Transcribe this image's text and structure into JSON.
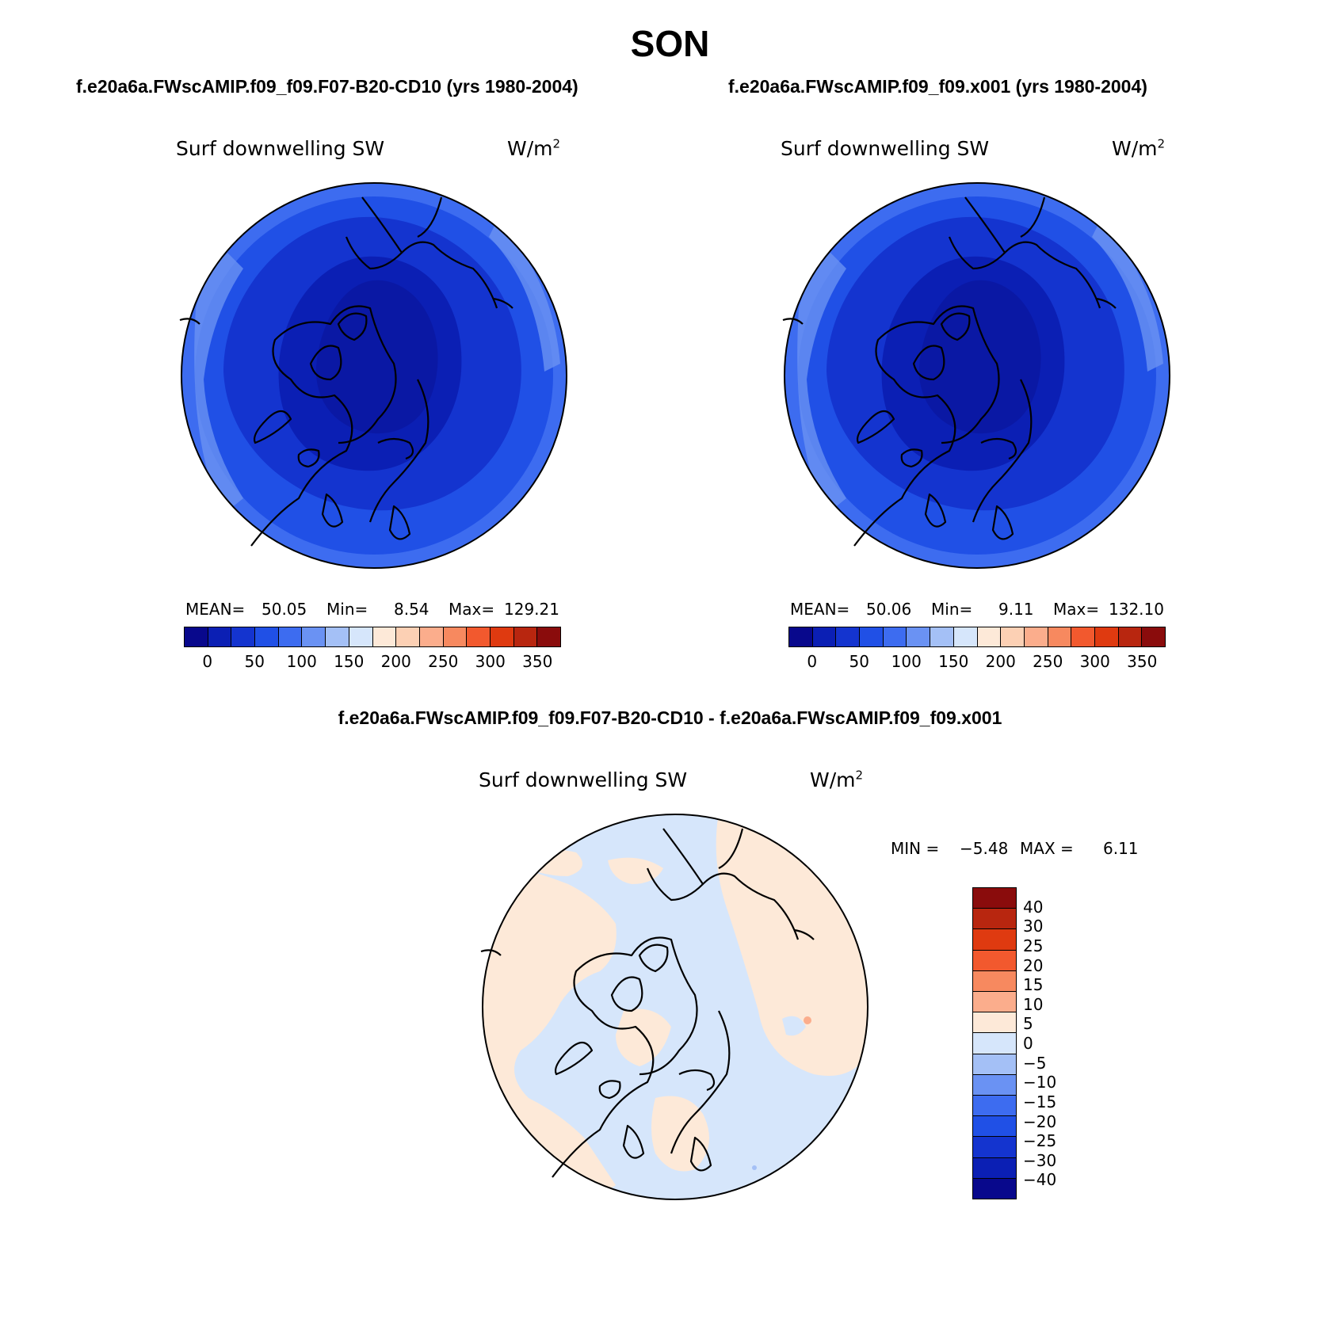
{
  "season": "SON",
  "panels": [
    {
      "case_title": "f.e20a6a.FWscAMIP.f09_f09.F07-B20-CD10 (yrs 1980-2004)",
      "variable": "Surf downwelling SW",
      "units_base": "W/m",
      "units_exp": "2",
      "stats": {
        "mean_label": "MEAN=",
        "mean": "50.05",
        "min_label": "Min=",
        "min": "8.54",
        "max_label": "Max=",
        "max": "129.21"
      }
    },
    {
      "case_title": "f.e20a6a.FWscAMIP.f09_f09.x001 (yrs 1980-2004)",
      "variable": "Surf downwelling SW",
      "units_base": "W/m",
      "units_exp": "2",
      "stats": {
        "mean_label": "MEAN=",
        "mean": "50.06",
        "min_label": "Min=",
        "min": "9.11",
        "max_label": "Max=",
        "max": "132.10"
      }
    }
  ],
  "diff_panel": {
    "title": "f.e20a6a.FWscAMIP.f09_f09.F07-B20-CD10 - f.e20a6a.FWscAMIP.f09_f09.x001",
    "variable": "Surf downwelling SW",
    "units_base": "W/m",
    "units_exp": "2",
    "minmax": {
      "min_label": "MIN =",
      "min": "−5.48",
      "max_label": "MAX =",
      "max": "6.11"
    }
  },
  "colors": {
    "abs_scale": [
      "#08088c",
      "#0b1fb4",
      "#1434cf",
      "#2050e6",
      "#3d6cf0",
      "#6a92f3",
      "#a4c0f6",
      "#d6e6fb",
      "#fde9d8",
      "#fcd0b4",
      "#fbad8c",
      "#f7895f",
      "#f2592e",
      "#df3a10",
      "#b8260f",
      "#8a0c0c"
    ],
    "diff_scale_top_to_bottom": [
      "#8a0c0c",
      "#b8260f",
      "#df3a10",
      "#f2592e",
      "#f7895f",
      "#fbad8c",
      "#fde9d8",
      "#d6e6fb",
      "#a4c0f6",
      "#6a92f3",
      "#3d6cf0",
      "#2050e6",
      "#1434cf",
      "#0b1fb4",
      "#08088c"
    ]
  },
  "abs_colorbar_ticks": [
    "0",
    "50",
    "100",
    "150",
    "200",
    "250",
    "300",
    "350"
  ],
  "diff_colorbar_ticks": [
    "40",
    "30",
    "25",
    "20",
    "15",
    "10",
    "5",
    "0",
    "−5",
    "−10",
    "−15",
    "−20",
    "−25",
    "−30",
    "−40"
  ],
  "chart_data": [
    {
      "type": "heatmap",
      "projection": "north polar stereographic",
      "field": "Surf downwelling SW",
      "case": "f.e20a6a.FWscAMIP.f09_f09.F07-B20-CD10",
      "season": "SON",
      "years": "1980-2004",
      "mean": 50.05,
      "min": 8.54,
      "max": 129.21,
      "contour_levels": [
        0,
        25,
        50,
        75,
        100,
        125,
        150,
        175,
        200,
        225,
        250,
        275,
        300,
        325,
        350
      ],
      "ring_values_pole_to_edge": [
        15,
        30,
        45,
        60,
        75,
        95
      ]
    },
    {
      "type": "heatmap",
      "projection": "north polar stereographic",
      "field": "Surf downwelling SW",
      "case": "f.e20a6a.FWscAMIP.f09_f09.x001",
      "season": "SON",
      "years": "1980-2004",
      "mean": 50.06,
      "min": 9.11,
      "max": 132.1,
      "contour_levels": [
        0,
        25,
        50,
        75,
        100,
        125,
        150,
        175,
        200,
        225,
        250,
        275,
        300,
        325,
        350
      ],
      "ring_values_pole_to_edge": [
        15,
        30,
        45,
        60,
        75,
        95
      ]
    },
    {
      "type": "heatmap",
      "projection": "north polar stereographic",
      "field": "Surf downwelling SW difference",
      "min": -5.48,
      "max": 6.11,
      "contour_levels": [
        -40,
        -30,
        -25,
        -20,
        -15,
        -10,
        -5,
        0,
        5,
        10,
        15,
        20,
        25,
        30,
        40
      ],
      "dominant_bins": [
        "0 to 5",
        "-5 to 0"
      ]
    }
  ]
}
